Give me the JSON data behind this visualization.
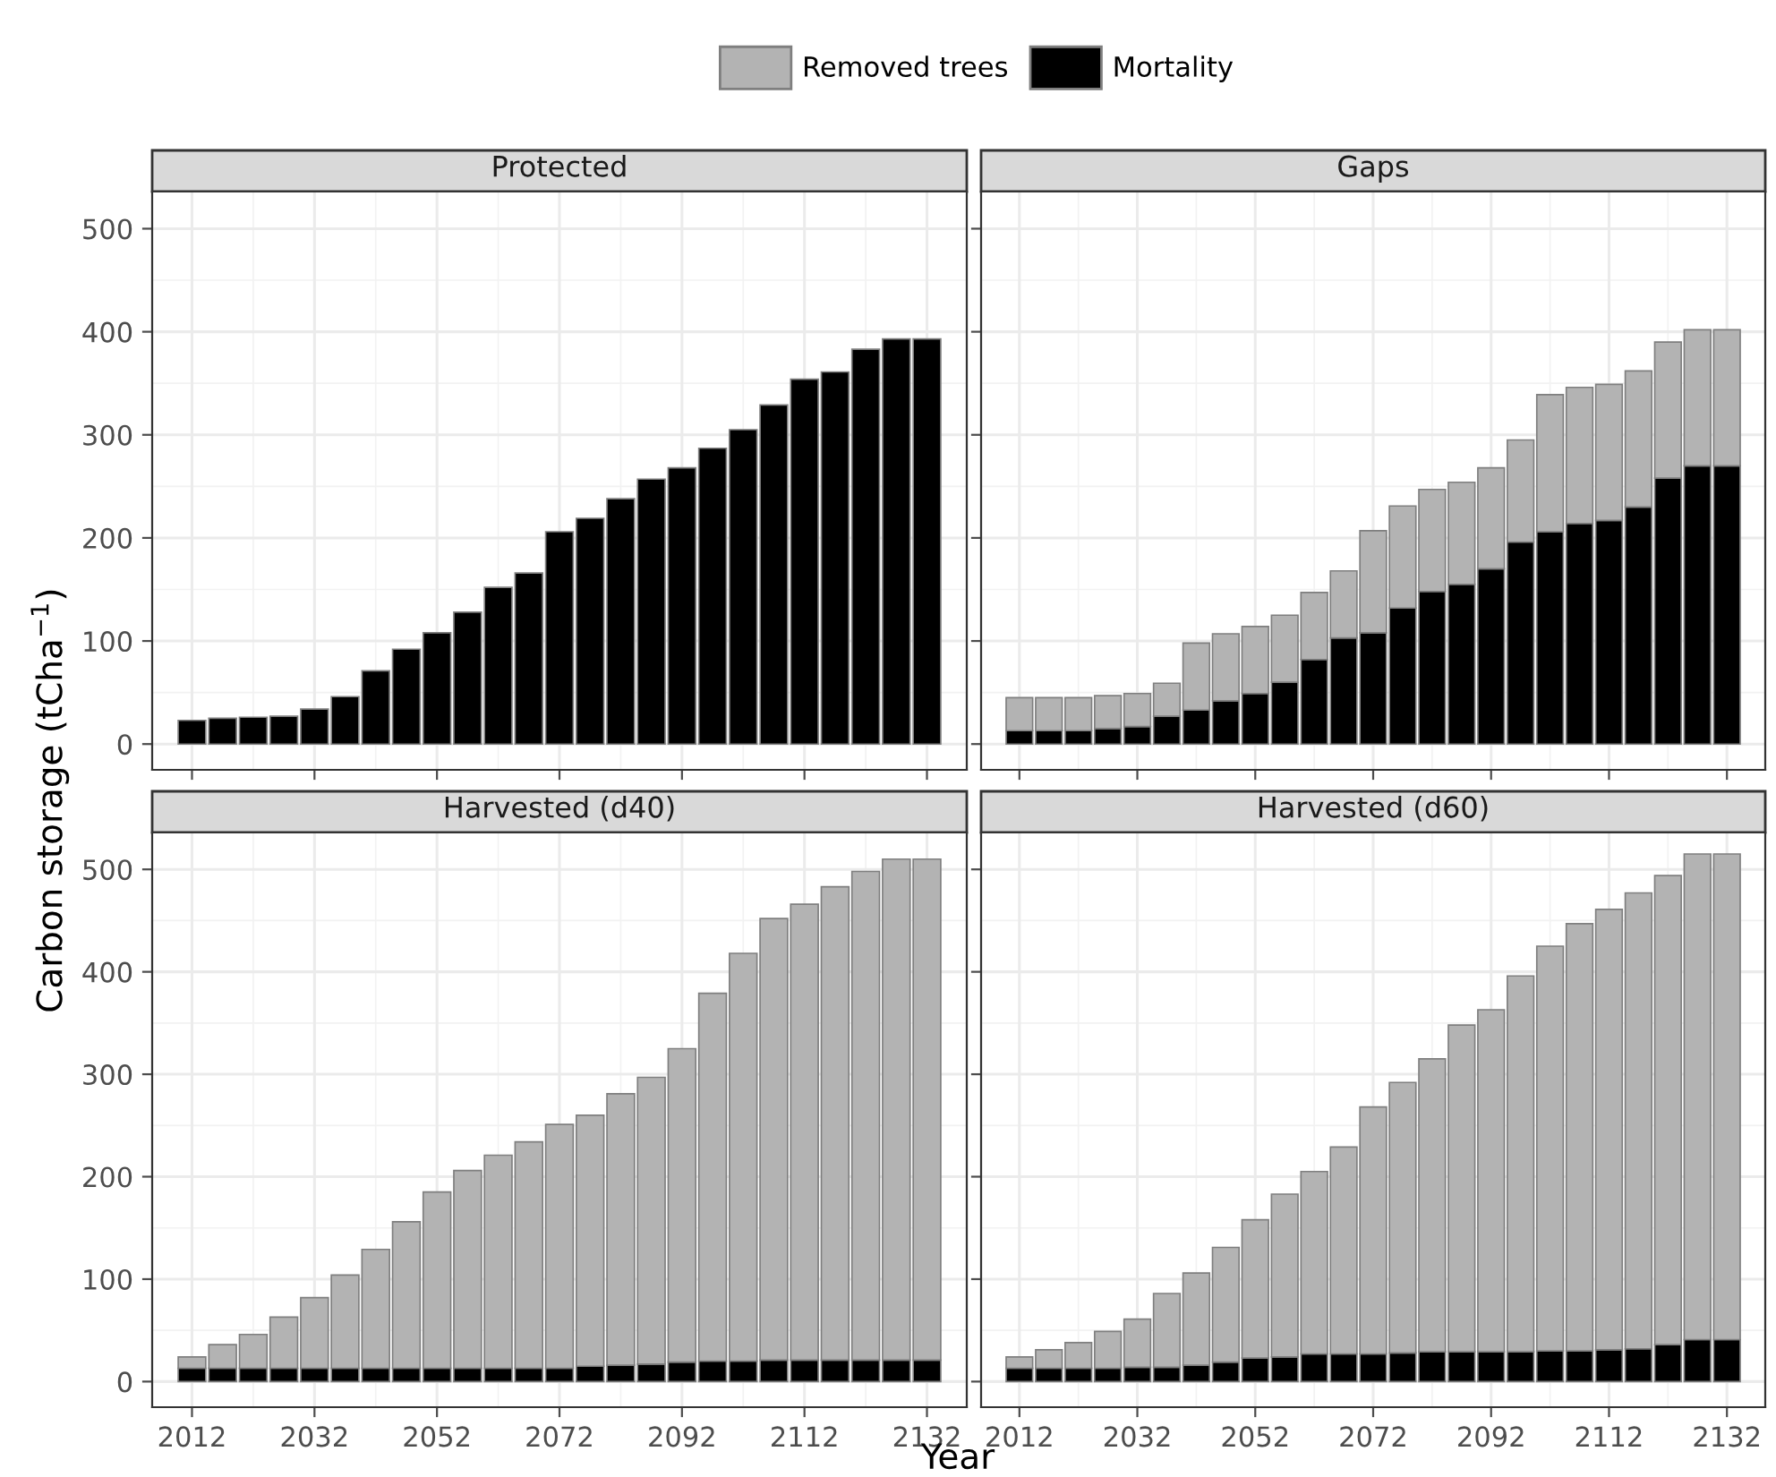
{
  "chart_data": [
    {
      "type": "bar",
      "title": "Protected",
      "ylabel": "Carbon storage (tCha$^{−1}$)",
      "stacked": true,
      "grid": true,
      "tick_labels": "y",
      "x": [
        2012,
        2017,
        2022,
        2027,
        2032,
        2037,
        2042,
        2047,
        2052,
        2057,
        2062,
        2067,
        2072,
        2077,
        2082,
        2087,
        2092,
        2097,
        2102,
        2107,
        2112,
        2117,
        2122,
        2127,
        2132
      ],
      "xlim": [
        2005.5,
        2138.5
      ],
      "xticks": [
        2012,
        2032,
        2052,
        2072,
        2092,
        2112,
        2132
      ],
      "ylim": [
        -25,
        536
      ],
      "yticks": [
        0,
        100,
        200,
        300,
        400,
        500
      ],
      "series": [
        {
          "color": "#000000",
          "values": [
            23,
            25,
            26,
            27,
            34,
            46,
            71,
            92,
            108,
            128,
            152,
            166,
            206,
            219,
            238,
            257,
            268,
            287,
            305,
            329,
            354,
            361,
            383,
            393,
            393
          ]
        }
      ]
    },
    {
      "type": "bar",
      "title": "Gaps",
      "stacked": true,
      "legend": "top",
      "grid": true,
      "tick_labels": false,
      "x": [
        2012,
        2017,
        2022,
        2027,
        2032,
        2037,
        2042,
        2047,
        2052,
        2057,
        2062,
        2067,
        2072,
        2077,
        2082,
        2087,
        2092,
        2097,
        2102,
        2107,
        2112,
        2117,
        2122,
        2127,
        2132
      ],
      "xlim": [
        2005.5,
        2138.5
      ],
      "xticks": [
        2012,
        2032,
        2052,
        2072,
        2092,
        2112,
        2132
      ],
      "ylim": [
        -25,
        536
      ],
      "yticks": [
        0,
        100,
        200,
        300,
        400,
        500
      ],
      "series": [
        {
          "name": "Mortality",
          "color": "#000000",
          "values": [
            13,
            13,
            13,
            15,
            17,
            27,
            33,
            42,
            49,
            60,
            82,
            103,
            108,
            132,
            148,
            155,
            170,
            196,
            206,
            214,
            217,
            230,
            258,
            270,
            270
          ]
        },
        {
          "name": "Removed trees",
          "color": "#b3b3b3",
          "values": [
            32,
            32,
            32,
            32,
            32,
            32,
            65,
            65,
            65,
            65,
            65,
            65,
            99,
            99,
            99,
            99,
            98,
            99,
            133,
            132,
            132,
            132,
            132,
            132,
            132
          ]
        }
      ]
    },
    {
      "type": "bar",
      "title": "Harvested (d40)",
      "xlabel": "Year",
      "stacked": true,
      "grid": true,
      "x": [
        2012,
        2017,
        2022,
        2027,
        2032,
        2037,
        2042,
        2047,
        2052,
        2057,
        2062,
        2067,
        2072,
        2077,
        2082,
        2087,
        2092,
        2097,
        2102,
        2107,
        2112,
        2117,
        2122,
        2127,
        2132
      ],
      "xlim": [
        2005.5,
        2138.5
      ],
      "xticks": [
        2012,
        2032,
        2052,
        2072,
        2092,
        2112,
        2132
      ],
      "ylim": [
        -25,
        536
      ],
      "yticks": [
        0,
        100,
        200,
        300,
        400,
        500
      ],
      "series": [
        {
          "color": "#000000",
          "values": [
            13,
            13,
            13,
            13,
            13,
            13,
            13,
            13,
            13,
            13,
            13,
            13,
            13,
            15,
            16,
            17,
            19,
            20,
            20,
            21,
            21,
            21,
            21,
            21,
            21
          ]
        },
        {
          "color": "#b3b3b3",
          "values": [
            11,
            23,
            33,
            50,
            69,
            91,
            116,
            143,
            172,
            193,
            208,
            221,
            238,
            245,
            265,
            280,
            306,
            359,
            398,
            431,
            445,
            462,
            477,
            489,
            489
          ]
        }
      ]
    },
    {
      "type": "bar",
      "title": "Harvested (d60)",
      "stacked": true,
      "grid": true,
      "tick_labels": "x",
      "x": [
        2012,
        2017,
        2022,
        2027,
        2032,
        2037,
        2042,
        2047,
        2052,
        2057,
        2062,
        2067,
        2072,
        2077,
        2082,
        2087,
        2092,
        2097,
        2102,
        2107,
        2112,
        2117,
        2122,
        2127,
        2132
      ],
      "xlim": [
        2005.5,
        2138.5
      ],
      "xticks": [
        2012,
        2032,
        2052,
        2072,
        2092,
        2112,
        2132
      ],
      "ylim": [
        -25,
        536
      ],
      "yticks": [
        0,
        100,
        200,
        300,
        400,
        500
      ],
      "series": [
        {
          "color": "#000000",
          "values": [
            13,
            13,
            13,
            13,
            14,
            14,
            16,
            19,
            23,
            24,
            27,
            27,
            27,
            28,
            29,
            29,
            29,
            29,
            30,
            30,
            31,
            32,
            36,
            41,
            41
          ]
        },
        {
          "color": "#b3b3b3",
          "values": [
            11,
            18,
            25,
            36,
            47,
            72,
            90,
            112,
            135,
            159,
            178,
            202,
            241,
            264,
            286,
            319,
            334,
            367,
            395,
            417,
            430,
            445,
            458,
            474,
            474
          ]
        }
      ]
    }
  ]
}
